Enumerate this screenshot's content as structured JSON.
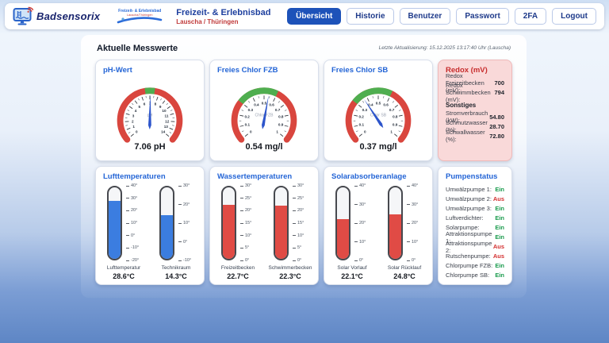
{
  "header": {
    "brand": "Badsensorix",
    "facility_logo": {
      "line1": "Freizeit- & Erlebnisbad",
      "line2": "Lauscha/Thüringen"
    },
    "title": "Freizeit- & Erlebnisbad",
    "subtitle": "Lauscha / Thüringen",
    "nav": [
      {
        "label": "Übersicht",
        "active": true
      },
      {
        "label": "Historie",
        "active": false
      },
      {
        "label": "Benutzer",
        "active": false
      },
      {
        "label": "Passwort",
        "active": false
      },
      {
        "label": "2FA",
        "active": false
      },
      {
        "label": "Logout",
        "active": false
      }
    ]
  },
  "page": {
    "heading": "Aktuelle Messwerte",
    "last_update": "Letzte Aktualisierung: 15.12.2025 13:17:40 Uhr (Lauscha)"
  },
  "chart_data": [
    {
      "type": "gauge",
      "title": "pH-Wert",
      "min": 0,
      "max": 14,
      "value": 7.06,
      "value_label": "7.06 pH",
      "center_label": "pH",
      "green_zone": [
        6.5,
        7.5
      ],
      "tick_labels": [
        "0",
        "1",
        "2",
        "3",
        "4",
        "5",
        "6",
        "7",
        "8",
        "9",
        "10",
        "11",
        "12",
        "13",
        "14"
      ],
      "colors": {
        "band": "#d9463e",
        "zone": "#4fae4f",
        "needle": "#2d55cb"
      }
    },
    {
      "type": "gauge",
      "title": "Freies Chlor FZB",
      "min": 0,
      "max": 1,
      "value": 0.54,
      "value_label": "0.54 mg/l",
      "center_label": "Chlor FZB",
      "green_zone": [
        0.3,
        0.6
      ],
      "tick_labels": [
        "0",
        "0.1",
        "0.2",
        "0.3",
        "0.4",
        "0.5",
        "0.6",
        "0.7",
        "0.8",
        "0.9",
        "1"
      ],
      "colors": {
        "band": "#d9463e",
        "zone": "#4fae4f",
        "needle": "#2d55cb"
      }
    },
    {
      "type": "gauge",
      "title": "Freies Chlor SB",
      "min": 0,
      "max": 1,
      "value": 0.37,
      "value_label": "0.37 mg/l",
      "center_label": "Chlor SB",
      "green_zone": [
        0.3,
        0.6
      ],
      "tick_labels": [
        "0",
        "0.1",
        "0.2",
        "0.3",
        "0.4",
        "0.5",
        "0.6",
        "0.7",
        "0.8",
        "0.9",
        "1"
      ],
      "colors": {
        "band": "#d9463e",
        "zone": "#4fae4f",
        "needle": "#2d55cb"
      }
    },
    {
      "type": "thermometer-group",
      "title": "Lufttemperaturen",
      "unit": "°C",
      "thermometers": [
        {
          "name": "Lufttemperatur",
          "value": 28.6,
          "value_label": "28.6°C",
          "min": -20,
          "max": 40,
          "ticks": [
            40,
            30,
            20,
            10,
            0,
            -10,
            -20
          ],
          "color": "#3b7de0"
        },
        {
          "name": "Technikraum",
          "value": 14.3,
          "value_label": "14.3°C",
          "min": -10,
          "max": 30,
          "ticks": [
            30,
            20,
            10,
            0,
            -10
          ],
          "color": "#3b7de0"
        }
      ]
    },
    {
      "type": "thermometer-group",
      "title": "Wassertemperaturen",
      "unit": "°C",
      "thermometers": [
        {
          "name": "Freizeitbecken",
          "value": 22.7,
          "value_label": "22.7°C",
          "min": 0,
          "max": 30,
          "ticks": [
            30,
            25,
            20,
            15,
            10,
            5,
            0
          ],
          "color": "#e04b45"
        },
        {
          "name": "Schwimmerbecken",
          "value": 22.3,
          "value_label": "22.3°C",
          "min": 0,
          "max": 30,
          "ticks": [
            30,
            25,
            20,
            15,
            10,
            5,
            0
          ],
          "color": "#e04b45"
        }
      ]
    },
    {
      "type": "thermometer-group",
      "title": "Solarabsorberanlage",
      "unit": "°C",
      "thermometers": [
        {
          "name": "Solar Vorlauf",
          "value": 22.1,
          "value_label": "22.1°C",
          "min": 0,
          "max": 40,
          "ticks": [
            40,
            30,
            20,
            10,
            0
          ],
          "color": "#e04b45"
        },
        {
          "name": "Solar Rücklauf",
          "value": 24.8,
          "value_label": "24.8°C",
          "min": 0,
          "max": 40,
          "ticks": [
            40,
            30,
            20,
            10,
            0
          ],
          "color": "#e04b45"
        }
      ]
    }
  ],
  "redox_panel": {
    "title": "Redox (mV)",
    "rows": [
      {
        "label": "Redox Freizeitbecken (mV):",
        "value": "700"
      },
      {
        "label": "Redox Schwimmbecken (mV):",
        "value": "794"
      }
    ],
    "subheading": "Sonstiges",
    "rows2": [
      {
        "label": "Stromverbrauch (kW):",
        "value": "54.80"
      },
      {
        "label": "Schmutzwasser (%):",
        "value": "28.70"
      },
      {
        "label": "Schwallwasser (%):",
        "value": "72.80"
      }
    ]
  },
  "pumps": {
    "title": "Pumpenstatus",
    "rows": [
      {
        "label": "Umwälzpumpe 1:",
        "state": "Ein"
      },
      {
        "label": "Umwälzpumpe 2:",
        "state": "Aus"
      },
      {
        "label": "Umwälzpumpe 3:",
        "state": "Ein"
      },
      {
        "label": "Luftverdichter:",
        "state": "Ein"
      },
      {
        "label": "Solarpumpe:",
        "state": "Ein"
      },
      {
        "label": "Attraktionspumpe 1:",
        "state": "Ein"
      },
      {
        "label": "Attraktionspumpe 2:",
        "state": "Aus"
      },
      {
        "label": "Rutschenpumpe:",
        "state": "Aus"
      },
      {
        "label": "Chlorpumpe FZB:",
        "state": "Ein"
      },
      {
        "label": "Chlorpumpe SB:",
        "state": "Ein"
      }
    ]
  },
  "colors": {
    "accent_blue": "#1d52b9",
    "card_title_blue": "#2465d6",
    "alert_red": "#c72c2c",
    "state_on_green": "#179a4b",
    "state_off_red": "#d32f2f"
  }
}
